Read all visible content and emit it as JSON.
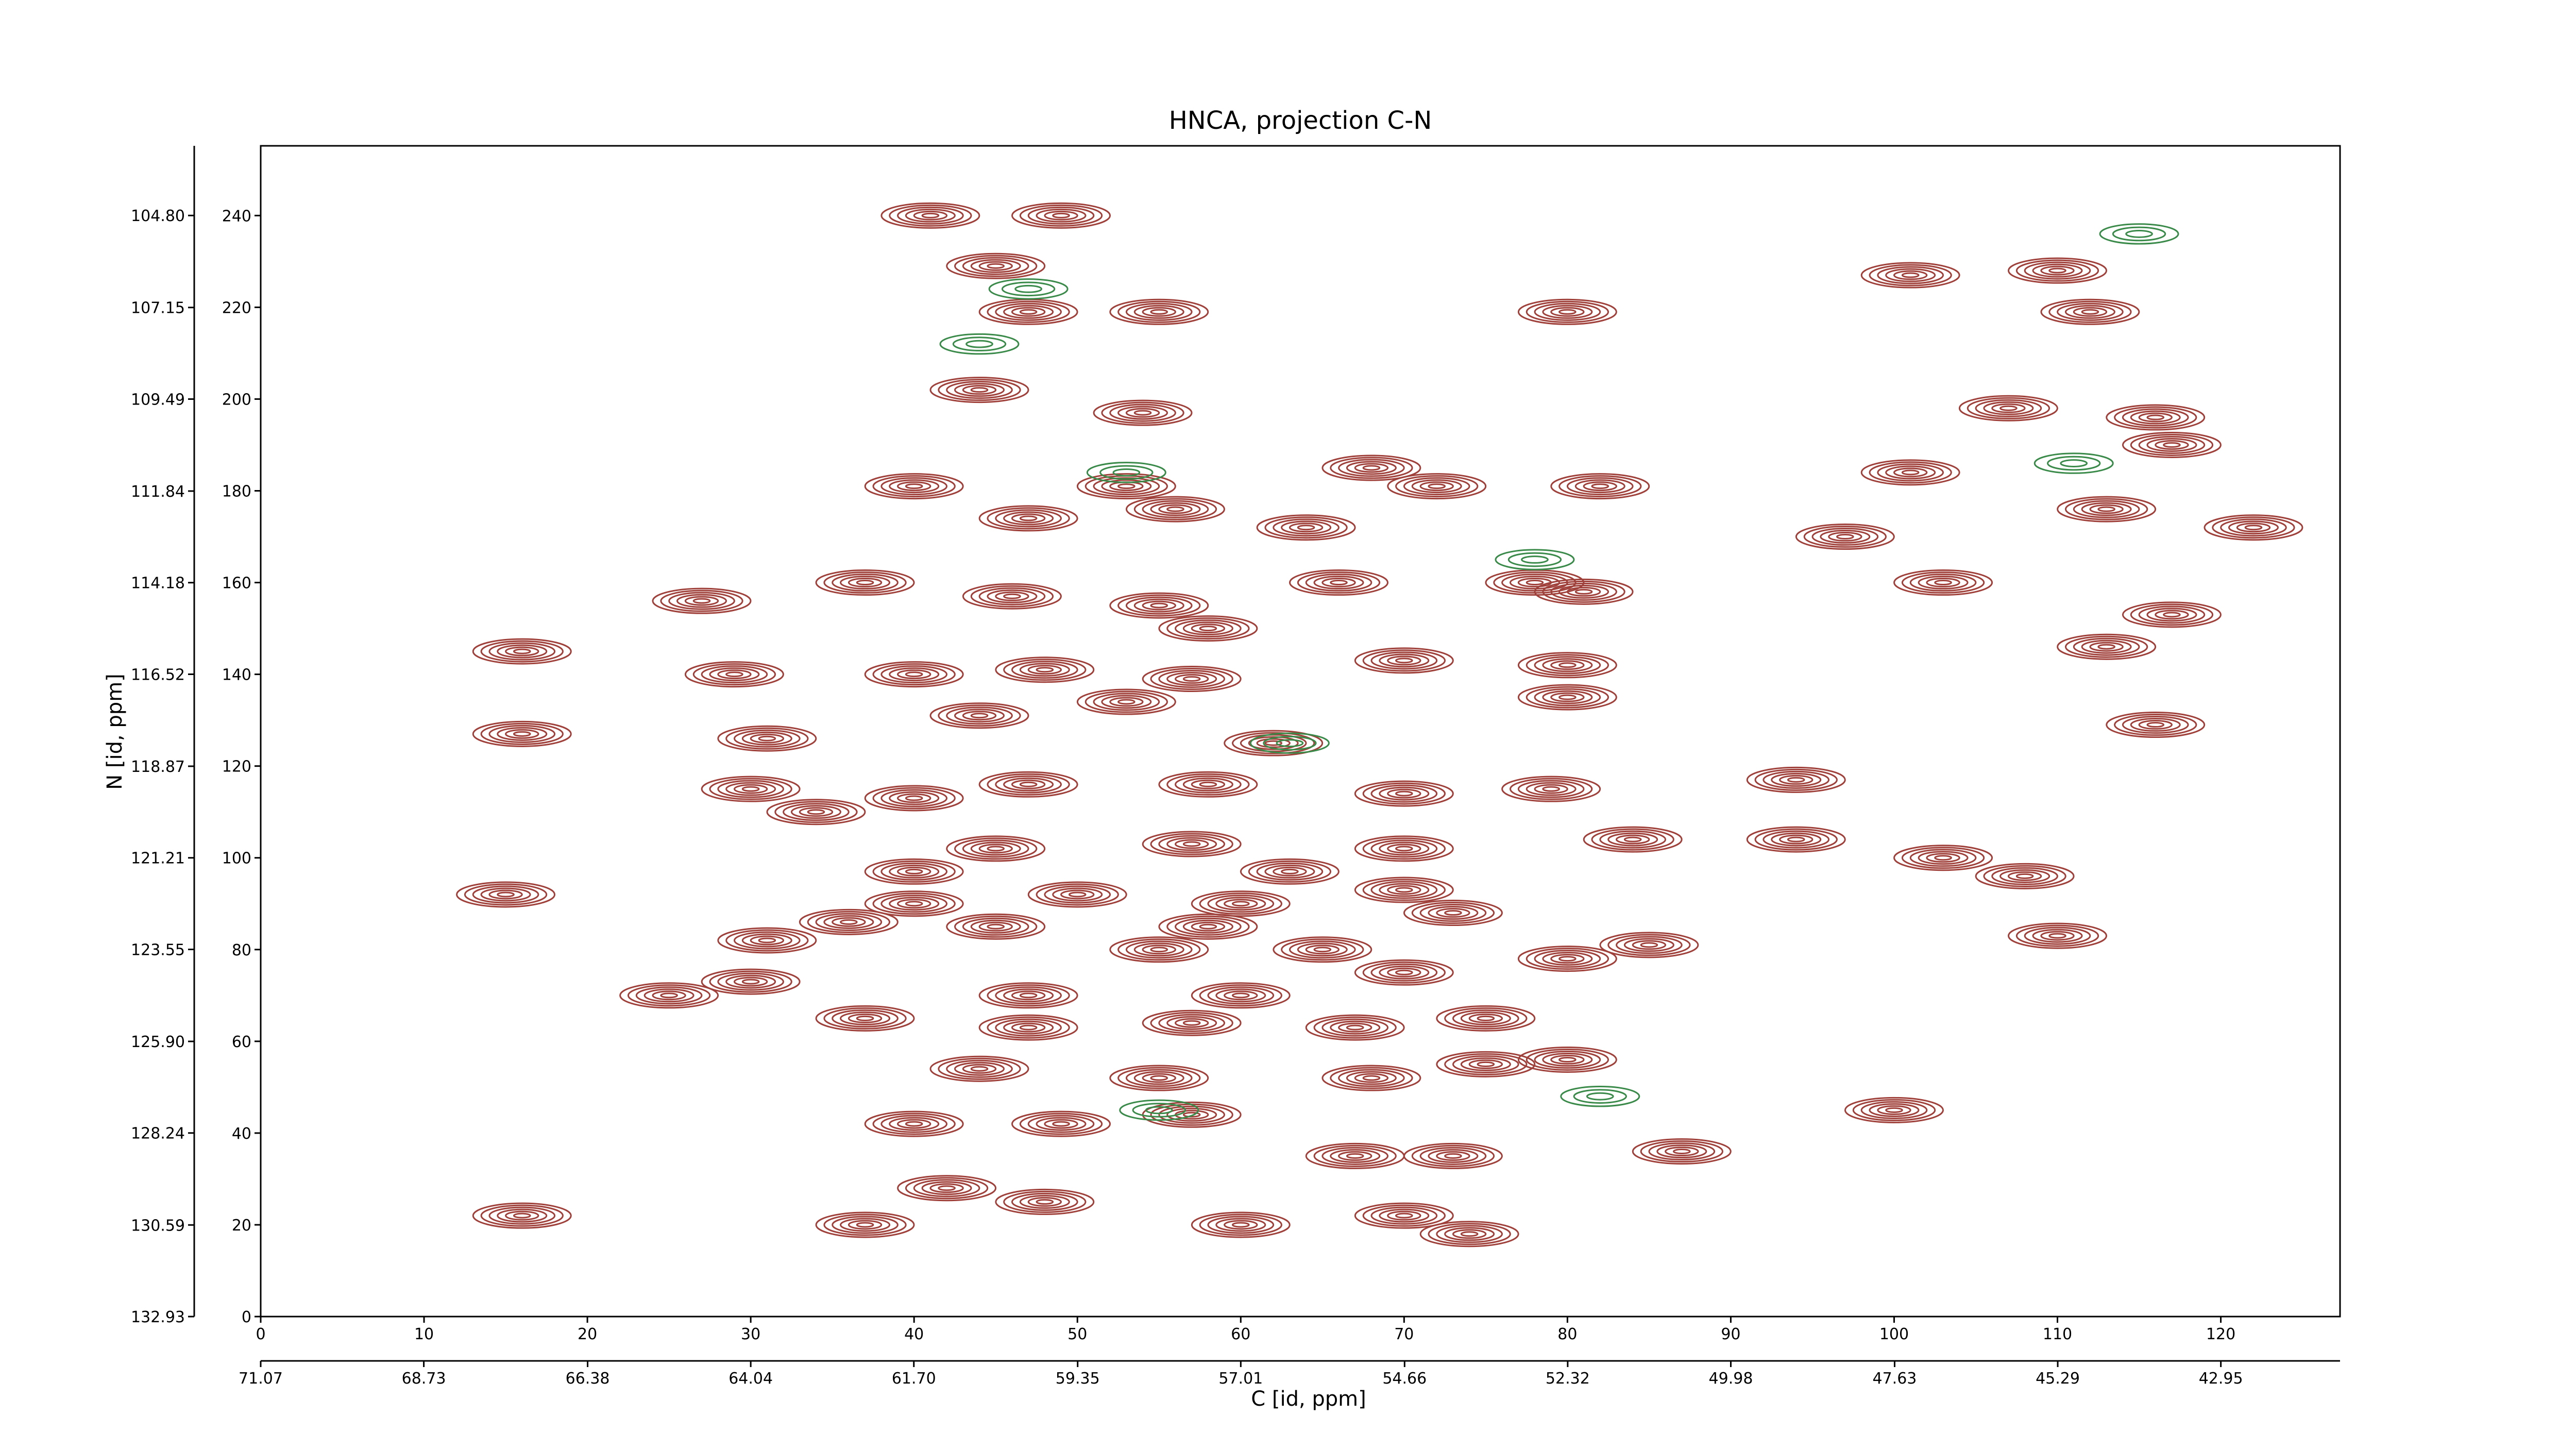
{
  "chart_data": {
    "type": "contour",
    "title": "HNCA, projection C-N",
    "x_label": "C [id, ppm]",
    "y_label": "N [id, ppm]",
    "xlim": [
      0,
      127.3
    ],
    "ylim": [
      0,
      255.2
    ],
    "xticks": [
      0,
      10,
      20,
      30,
      40,
      50,
      60,
      70,
      80,
      90,
      100,
      110,
      120
    ],
    "yticks": [
      0,
      20,
      40,
      60,
      80,
      100,
      120,
      140,
      160,
      180,
      200,
      220,
      240
    ],
    "x2lim": [
      71.07,
      41.24
    ],
    "x2ticks": [
      71.07,
      68.73,
      66.38,
      64.04,
      {
        "value": 61.7,
        "label": "61.70"
      },
      59.35,
      57.01,
      54.66,
      52.32,
      49.98,
      47.63,
      45.29,
      42.95
    ],
    "y2lim": [
      132.93,
      103.02
    ],
    "y2ticks": [
      132.93,
      130.59,
      128.24,
      {
        "value": 125.9,
        "label": "125.90"
      },
      123.55,
      121.21,
      118.87,
      116.52,
      114.18,
      111.84,
      109.49,
      107.15,
      {
        "value": 104.8,
        "label": "104.80"
      }
    ],
    "series": [
      {
        "color": "#a0403a",
        "x": [
          41,
          49,
          45,
          47,
          55,
          80,
          44,
          54,
          101,
          110,
          112,
          107,
          116,
          117,
          101,
          68,
          40,
          53,
          56,
          72,
          82,
          47,
          64,
          97,
          113,
          122,
          66,
          37,
          46,
          55,
          58,
          78,
          81,
          16,
          27,
          103,
          117,
          29,
          40,
          48,
          57,
          70,
          80,
          31,
          16,
          80,
          116,
          113,
          53,
          62,
          44,
          30,
          40,
          47,
          58,
          70,
          79,
          94,
          15,
          45,
          57,
          70,
          84,
          94,
          103,
          108,
          34,
          31,
          30,
          25,
          37,
          47,
          57,
          67,
          75,
          47,
          60,
          70,
          80,
          85,
          44,
          55,
          68,
          75,
          80,
          40,
          49,
          57,
          67,
          73,
          87,
          100,
          42,
          48,
          37,
          60,
          70,
          74,
          16,
          40,
          50,
          60,
          70,
          36,
          45,
          58,
          55,
          65,
          110,
          40,
          63,
          73
        ],
        "values": [
          240,
          240,
          229,
          219,
          219,
          219,
          202,
          197,
          227,
          228,
          219,
          198,
          196,
          190,
          184,
          185,
          181,
          181,
          176,
          181,
          181,
          174,
          172,
          170,
          176,
          172,
          160,
          160,
          157,
          155,
          150,
          160,
          158,
          145,
          156,
          160,
          153,
          140,
          140,
          141,
          139,
          143,
          142,
          126,
          127,
          135,
          129,
          146,
          134,
          125,
          131,
          115,
          113,
          116,
          116,
          114,
          115,
          117,
          92,
          102,
          103,
          102,
          104,
          104,
          100,
          96,
          110,
          82,
          73,
          70,
          65,
          63,
          64,
          63,
          65,
          70,
          70,
          75,
          78,
          81,
          54,
          52,
          52,
          55,
          56,
          42,
          42,
          44,
          35,
          35,
          36,
          45,
          28,
          25,
          20,
          20,
          22,
          18,
          22,
          90,
          92,
          90,
          93,
          86,
          85,
          85,
          80,
          80,
          83,
          97,
          97,
          88
        ]
      },
      {
        "color": "#3a8a4a",
        "x": [
          44,
          47,
          53,
          78,
          63,
          55,
          82,
          111,
          115
        ],
        "values": [
          212,
          224,
          184,
          165,
          125,
          45,
          48,
          186,
          236
        ]
      }
    ]
  }
}
